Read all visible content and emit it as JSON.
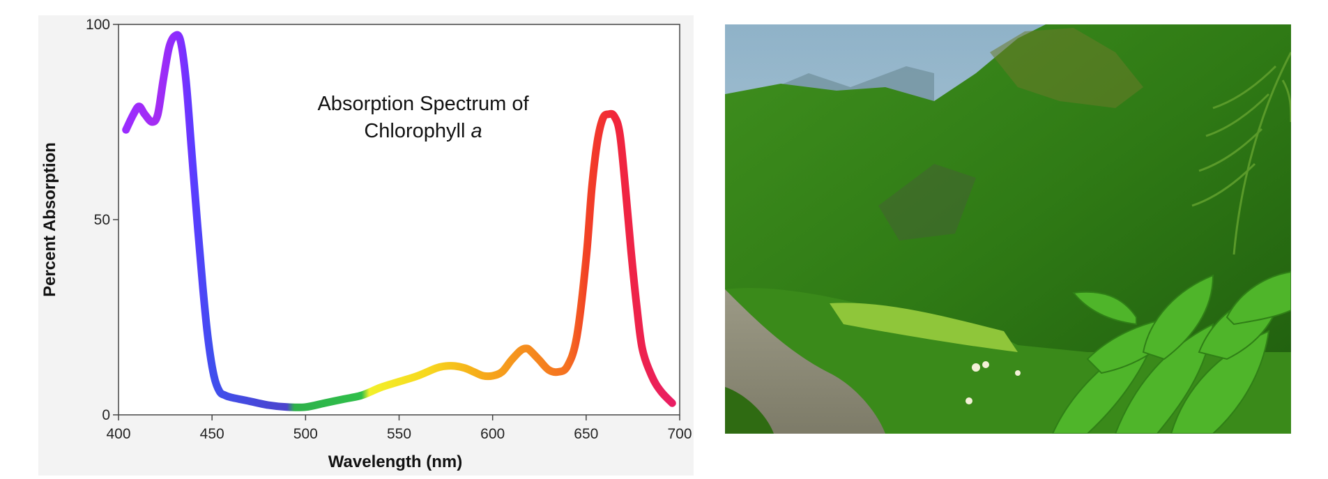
{
  "chart_data": {
    "type": "line",
    "title": "Absorption Spectrum of",
    "title_line2": "Chlorophyll",
    "title_italic": "a",
    "xlabel": "Wavelength (nm)",
    "ylabel": "Percent Absorption",
    "xlim": [
      400,
      700
    ],
    "ylim": [
      0,
      100
    ],
    "xticks": [
      400,
      450,
      500,
      550,
      600,
      650,
      700
    ],
    "yticks": [
      0,
      50,
      100
    ],
    "grid": false,
    "series": [
      {
        "x": [
          404,
          408,
          411,
          414,
          418,
          421,
          424,
          427,
          430,
          433,
          436,
          439,
          442,
          445,
          448,
          451,
          454,
          457,
          460,
          470,
          480,
          490,
          500,
          510,
          520,
          530,
          540,
          550,
          560,
          570,
          575,
          580,
          585,
          590,
          595,
          600,
          605,
          610,
          615,
          618,
          620,
          625,
          630,
          635,
          640,
          645,
          650,
          653,
          656,
          659,
          662,
          665,
          668,
          671,
          674,
          677,
          680,
          685,
          690,
          696
        ],
        "y": [
          73,
          77,
          79,
          77,
          75,
          77,
          86,
          94,
          97,
          96,
          86,
          68,
          50,
          33,
          19,
          10,
          6,
          5,
          4.5,
          3.5,
          2.5,
          2,
          2,
          3,
          4,
          5,
          7,
          8.5,
          10,
          12,
          12.5,
          12.5,
          12,
          11,
          10,
          10,
          11,
          14,
          16.5,
          17,
          16.5,
          14,
          11.5,
          11,
          12.5,
          20,
          40,
          58,
          70,
          76,
          77,
          76.5,
          72,
          58,
          42,
          28,
          17,
          10,
          6,
          3
        ]
      }
    ],
    "spectrum_colors": [
      {
        "x": 404,
        "color": "#9a2cff"
      },
      {
        "x": 420,
        "color": "#a52cf2"
      },
      {
        "x": 432,
        "color": "#8a2bff"
      },
      {
        "x": 440,
        "color": "#5a3cff"
      },
      {
        "x": 450,
        "color": "#3f4fee"
      },
      {
        "x": 490,
        "color": "#4c44cc"
      },
      {
        "x": 494,
        "color": "#2eb14a"
      },
      {
        "x": 530,
        "color": "#2fbf4a"
      },
      {
        "x": 534,
        "color": "#f2f02a"
      },
      {
        "x": 565,
        "color": "#f7d81e"
      },
      {
        "x": 590,
        "color": "#f6b01a"
      },
      {
        "x": 620,
        "color": "#f58a1e"
      },
      {
        "x": 640,
        "color": "#f57020"
      },
      {
        "x": 650,
        "color": "#f24224"
      },
      {
        "x": 665,
        "color": "#f1263a"
      },
      {
        "x": 696,
        "color": "#e91e63"
      }
    ]
  }
}
